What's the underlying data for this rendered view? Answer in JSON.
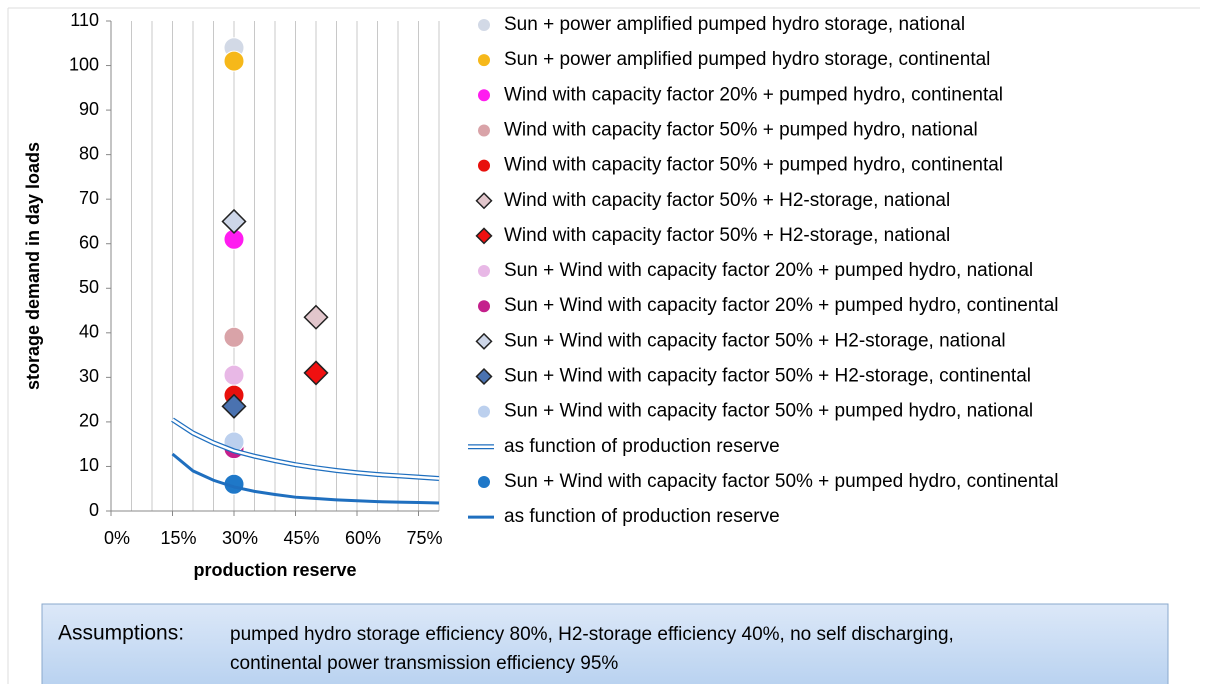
{
  "chart_data": {
    "type": "scatter",
    "xlabel": "production reserve",
    "ylabel": "storage demand  in day loads",
    "xlim": [
      0,
      80
    ],
    "xticks": [
      {
        "value": 0,
        "label": "0%"
      },
      {
        "value": 15,
        "label": "15%"
      },
      {
        "value": 30,
        "label": "30%"
      },
      {
        "value": 45,
        "label": "45%"
      },
      {
        "value": 60,
        "label": "60%"
      },
      {
        "value": 75,
        "label": "75%"
      }
    ],
    "x_minor_ticks": [
      0,
      5,
      10,
      15,
      20,
      25,
      30,
      35,
      40,
      45,
      50,
      55,
      60,
      65,
      70,
      75,
      80
    ],
    "ylim": [
      0,
      110
    ],
    "yticks": [
      0,
      10,
      20,
      30,
      40,
      50,
      60,
      70,
      80,
      90,
      100,
      110
    ],
    "grid": true,
    "legend": "right",
    "series": [
      {
        "name": "Sun + power amplified pumped hydro storage, national",
        "color": "#d2d9e6",
        "marker": "circle",
        "x": [
          30
        ],
        "values": [
          104
        ]
      },
      {
        "name": "Sun + power amplified pumped hydro storage, continental",
        "color": "#f6b81a",
        "marker": "circle",
        "x": [
          30
        ],
        "values": [
          101
        ]
      },
      {
        "name": "Wind with capacity factor 20% + pumped hydro, continental",
        "color": "#ff1cf0",
        "marker": "circle",
        "x": [
          30
        ],
        "values": [
          61
        ]
      },
      {
        "name": "Wind with capacity factor 50% + pumped hydro, national",
        "color": "#d9a3a8",
        "marker": "circle",
        "x": [
          30
        ],
        "values": [
          39
        ]
      },
      {
        "name": "Wind with capacity factor 50% + pumped hydro, continental",
        "color": "#e8100c",
        "marker": "circle",
        "x": [
          30
        ],
        "values": [
          26
        ]
      },
      {
        "name": "Wind with capacity factor 50% + H2-storage, national",
        "color": "#e2c6cc",
        "marker": "diamond",
        "x": [
          50
        ],
        "values": [
          43.5
        ]
      },
      {
        "name": "Wind with capacity factor 50% + H2-storage, national",
        "color": "#f01010",
        "marker": "diamond",
        "x": [
          50
        ],
        "values": [
          31
        ]
      },
      {
        "name": "Sun + Wind with capacity factor 20% + pumped hydro, national",
        "color": "#e8b8e6",
        "marker": "circle",
        "x": [
          30
        ],
        "values": [
          30.5
        ]
      },
      {
        "name": "Sun + Wind with capacity factor 20% + pumped hydro, continental",
        "color": "#c4208c",
        "marker": "circle",
        "x": [
          30
        ],
        "values": [
          14
        ]
      },
      {
        "name": "Sun + Wind with capacity factor 50% + H2-storage, national",
        "color": "#cdd6e8",
        "marker": "diamond",
        "x": [
          30
        ],
        "values": [
          65
        ]
      },
      {
        "name": "Sun + Wind with capacity factor 50% + H2-storage, continental",
        "color": "#4a72b0",
        "marker": "diamond",
        "x": [
          30
        ],
        "values": [
          23.5
        ]
      },
      {
        "name": "Sun + Wind with capacity factor 50% + pumped hydro, national",
        "color": "#bcd0ee",
        "marker": "circle",
        "x": [
          30
        ],
        "values": [
          15.5
        ]
      },
      {
        "name": "as function of production reserve",
        "color": "#1f6fbf",
        "marker": "double-line",
        "x": [
          15,
          20,
          25,
          30,
          35,
          40,
          45,
          50,
          55,
          60,
          65,
          70,
          75,
          80
        ],
        "values": [
          20.5,
          17.5,
          15.3,
          13.5,
          12.3,
          11.3,
          10.4,
          9.7,
          9.1,
          8.6,
          8.2,
          7.9,
          7.6,
          7.3
        ]
      },
      {
        "name": "Sun + Wind with capacity factor 50% + pumped hydro, continental",
        "color": "#1f78c8",
        "marker": "circle",
        "x": [
          30
        ],
        "values": [
          6
        ]
      },
      {
        "name": "as function of production reserve",
        "color": "#1f6fbf",
        "marker": "line",
        "x": [
          15,
          20,
          25,
          30,
          35,
          40,
          45,
          50,
          55,
          60,
          65,
          70,
          75,
          80
        ],
        "values": [
          12.8,
          9,
          6.9,
          5.4,
          4.4,
          3.7,
          3.1,
          2.8,
          2.5,
          2.3,
          2.1,
          2.0,
          1.9,
          1.8
        ]
      }
    ]
  },
  "assumptions": {
    "label": "Assumptions:",
    "lines": [
      "pumped hydro storage efficiency 80%, H2-storage efficiency 40%, no self discharging,",
      "continental power transmission efficiency 95%"
    ]
  }
}
